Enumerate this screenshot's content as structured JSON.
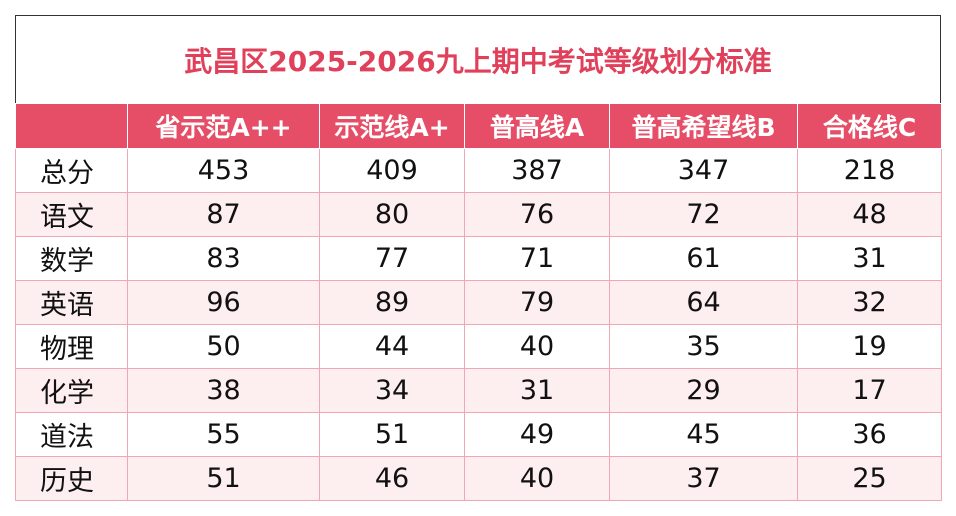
{
  "header": {
    "title": "武昌区2025-2026九上期中考试等级划分标准"
  },
  "table": {
    "columns": [
      "省示范A++",
      "示范线A+",
      "普高线A",
      "普高希望线B",
      "合格线C"
    ],
    "rows": [
      {
        "label": "总分",
        "values": [
          453,
          409,
          387,
          347,
          218
        ]
      },
      {
        "label": "语文",
        "values": [
          87,
          80,
          76,
          72,
          48
        ]
      },
      {
        "label": "数学",
        "values": [
          83,
          77,
          71,
          61,
          31
        ]
      },
      {
        "label": "英语",
        "values": [
          96,
          89,
          79,
          64,
          32
        ]
      },
      {
        "label": "物理",
        "values": [
          50,
          44,
          40,
          35,
          19
        ]
      },
      {
        "label": "化学",
        "values": [
          38,
          34,
          31,
          29,
          17
        ]
      },
      {
        "label": "道法",
        "values": [
          55,
          51,
          49,
          45,
          36
        ]
      },
      {
        "label": "历史",
        "values": [
          51,
          46,
          40,
          37,
          25
        ]
      }
    ]
  }
}
